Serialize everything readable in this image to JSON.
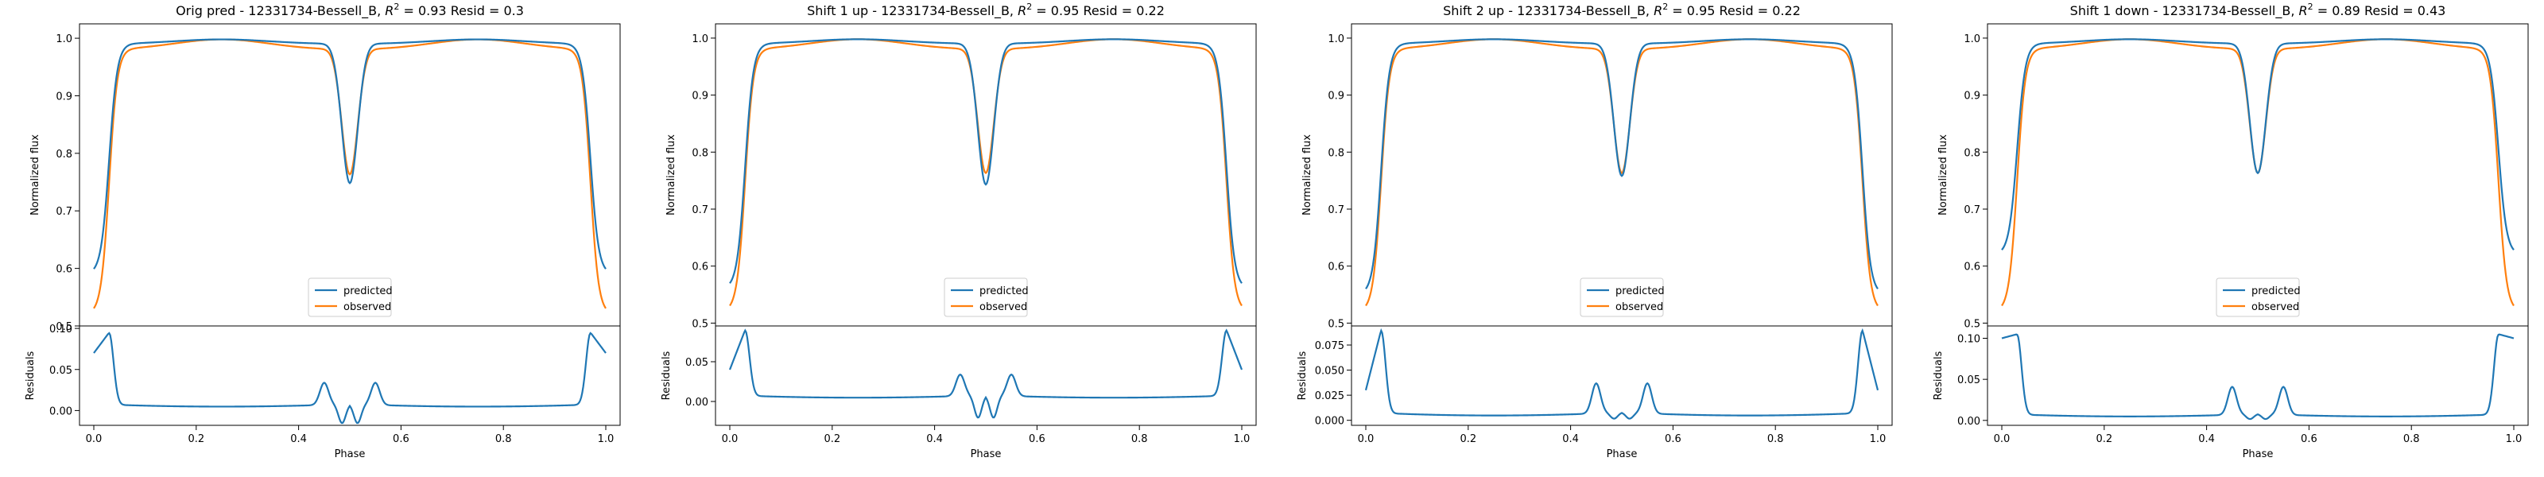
{
  "colors": {
    "predicted": "#1f77b4",
    "observed": "#ff7f0e",
    "axis": "#000000"
  },
  "chart_data": [
    {
      "type": "line",
      "title": "Orig pred - 12331734-Bessell_B, $R^2 = 0.93$ Resid = 0.3",
      "title_main": "Orig pred - 12331734-Bessell_B, ",
      "title_r2": "R",
      "title_sup": "2",
      "title_rest": " = 0.93 Resid = 0.3",
      "top": {
        "ylabel": "Normalized flux",
        "ylim": [
          0.5,
          1.025
        ],
        "yticks": [
          0.5,
          0.6,
          0.7,
          0.8,
          0.9,
          1.0
        ],
        "ytick_labels": [
          "0.5",
          "0.6",
          "0.7",
          "0.8",
          "0.9",
          "1.0"
        ],
        "legend": [
          "predicted",
          "observed"
        ],
        "legend_position": "lower-center",
        "predicted": {
          "ends": 0.59,
          "plateau": 0.99,
          "bump": 0.998,
          "dip": 0.748
        },
        "observed": {
          "ends": 0.52,
          "plateau": 0.98,
          "bump": 0.998,
          "dip": 0.763
        }
      },
      "bottom": {
        "ylabel": "Residuals",
        "xlabel": "Phase",
        "ylim": [
          -0.018,
          0.103
        ],
        "yticks": [
          0.0,
          0.05,
          0.1
        ],
        "ytick_labels": [
          "0.00",
          "0.05",
          "0.10"
        ],
        "xticks": [
          0.0,
          0.2,
          0.4,
          0.6,
          0.8,
          1.0
        ],
        "xtick_labels": [
          "0.0",
          "0.2",
          "0.4",
          "0.6",
          "0.8",
          "1.0"
        ],
        "residual": {
          "ends": 0.07,
          "peak": 0.095,
          "plateau": 0.008,
          "trough": 0.0,
          "bump": 0.035,
          "dip": -0.015
        }
      }
    },
    {
      "type": "line",
      "title": "Shift 1 up - 12331734-Bessell_B, $R^2 = 0.95$ Resid = 0.22",
      "title_main": "Shift 1 up - 12331734-Bessell_B, ",
      "title_r2": "R",
      "title_sup": "2",
      "title_rest": " = 0.95 Resid = 0.22",
      "top": {
        "ylabel": "Normalized flux",
        "ylim": [
          0.495,
          1.025
        ],
        "yticks": [
          0.5,
          0.6,
          0.7,
          0.8,
          0.9,
          1.0
        ],
        "ytick_labels": [
          "0.5",
          "0.6",
          "0.7",
          "0.8",
          "0.9",
          "1.0"
        ],
        "legend": [
          "predicted",
          "observed"
        ],
        "legend_position": "lower-center",
        "predicted": {
          "ends": 0.56,
          "plateau": 0.99,
          "bump": 0.998,
          "dip": 0.743
        },
        "observed": {
          "ends": 0.52,
          "plateau": 0.98,
          "bump": 0.998,
          "dip": 0.763
        }
      },
      "bottom": {
        "ylabel": "Residuals",
        "xlabel": "Phase",
        "ylim": [
          -0.03,
          0.095
        ],
        "yticks": [
          0.0,
          0.05
        ],
        "ytick_labels": [
          "0.00",
          "0.05"
        ],
        "xticks": [
          0.0,
          0.2,
          0.4,
          0.6,
          0.8,
          1.0
        ],
        "xtick_labels": [
          "0.0",
          "0.2",
          "0.4",
          "0.6",
          "0.8",
          "1.0"
        ],
        "residual": {
          "ends": 0.04,
          "peak": 0.09,
          "plateau": 0.008,
          "trough": 0.0,
          "bump": 0.035,
          "dip": -0.02
        }
      }
    },
    {
      "type": "line",
      "title": "Shift 2 up - 12331734-Bessell_B, $R^2 = 0.95$ Resid = 0.22",
      "title_main": "Shift 2 up - 12331734-Bessell_B, ",
      "title_r2": "R",
      "title_sup": "2",
      "title_rest": " = 0.95 Resid = 0.22",
      "top": {
        "ylabel": "Normalized flux",
        "ylim": [
          0.495,
          1.025
        ],
        "yticks": [
          0.5,
          0.6,
          0.7,
          0.8,
          0.9,
          1.0
        ],
        "ytick_labels": [
          "0.5",
          "0.6",
          "0.7",
          "0.8",
          "0.9",
          "1.0"
        ],
        "legend": [
          "predicted",
          "observed"
        ],
        "legend_position": "lower-center",
        "predicted": {
          "ends": 0.55,
          "plateau": 0.99,
          "bump": 0.998,
          "dip": 0.758
        },
        "observed": {
          "ends": 0.52,
          "plateau": 0.98,
          "bump": 0.998,
          "dip": 0.763
        }
      },
      "bottom": {
        "ylabel": "Residuals",
        "xlabel": "Phase",
        "ylim": [
          -0.005,
          0.094
        ],
        "yticks": [
          0.0,
          0.025,
          0.05,
          0.075
        ],
        "ytick_labels": [
          "0.000",
          "0.025",
          "0.050",
          "0.075"
        ],
        "xticks": [
          0.0,
          0.2,
          0.4,
          0.6,
          0.8,
          1.0
        ],
        "xtick_labels": [
          "0.0",
          "0.2",
          "0.4",
          "0.6",
          "0.8",
          "1.0"
        ],
        "residual": {
          "ends": 0.03,
          "peak": 0.09,
          "plateau": 0.008,
          "trough": 0.0,
          "bump": 0.038,
          "dip": 0.002
        }
      }
    },
    {
      "type": "line",
      "title": "Shift 1 down - 12331734-Bessell_B, $R^2 = 0.89$ Resid = 0.43",
      "title_main": "Shift 1 down - 12331734-Bessell_B, ",
      "title_r2": "R",
      "title_sup": "2",
      "title_rest": " = 0.89 Resid = 0.43",
      "top": {
        "ylabel": "Normalized flux",
        "ylim": [
          0.495,
          1.025
        ],
        "yticks": [
          0.5,
          0.6,
          0.7,
          0.8,
          0.9,
          1.0
        ],
        "ytick_labels": [
          "0.5",
          "0.6",
          "0.7",
          "0.8",
          "0.9",
          "1.0"
        ],
        "legend": [
          "predicted",
          "observed"
        ],
        "legend_position": "lower-center",
        "predicted": {
          "ends": 0.62,
          "plateau": 0.99,
          "bump": 0.998,
          "dip": 0.763
        },
        "observed": {
          "ends": 0.52,
          "plateau": 0.98,
          "bump": 0.998,
          "dip": 0.763
        }
      },
      "bottom": {
        "ylabel": "Residuals",
        "xlabel": "Phase",
        "ylim": [
          -0.006,
          0.115
        ],
        "yticks": [
          0.0,
          0.05,
          0.1
        ],
        "ytick_labels": [
          "0.00",
          "0.05",
          "0.10"
        ],
        "xticks": [
          0.0,
          0.2,
          0.4,
          0.6,
          0.8,
          1.0
        ],
        "xtick_labels": [
          "0.0",
          "0.2",
          "0.4",
          "0.6",
          "0.8",
          "1.0"
        ],
        "residual": {
          "ends": 0.1,
          "peak": 0.105,
          "plateau": 0.008,
          "trough": 0.0,
          "bump": 0.042,
          "dip": 0.002
        }
      }
    }
  ]
}
